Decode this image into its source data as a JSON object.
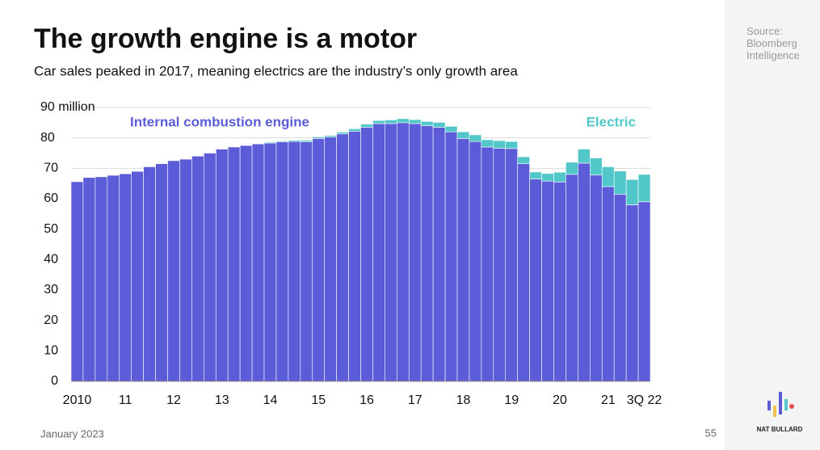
{
  "chart_data": {
    "type": "stacked_bar",
    "title": "The growth engine is a motor",
    "subtitle": "Car sales peaked in 2017, meaning electrics are the industry’s only growth area",
    "categories": [
      "2010",
      null,
      null,
      null,
      "11",
      null,
      null,
      null,
      "12",
      null,
      null,
      null,
      "13",
      null,
      null,
      null,
      "14",
      null,
      null,
      null,
      "15",
      null,
      null,
      null,
      "16",
      null,
      null,
      null,
      "17",
      null,
      null,
      null,
      "18",
      null,
      null,
      null,
      "19",
      null,
      null,
      null,
      "20",
      null,
      null,
      null,
      "21",
      null,
      null,
      "3Q 22"
    ],
    "series": [
      {
        "name": "Internal combustion engine",
        "color": "#5c5cd9",
        "values": [
          65.6,
          67,
          67.2,
          67.7,
          68.2,
          69,
          70.5,
          71.5,
          72.5,
          73,
          74,
          75,
          76.3,
          77,
          77.5,
          78,
          78.3,
          78.7,
          78.8,
          78.7,
          79.8,
          80.3,
          81.3,
          82.2,
          83.5,
          84.7,
          84.7,
          85,
          84.7,
          84,
          83.5,
          82,
          79.8,
          78.8,
          77,
          76.6,
          76.5,
          71.5,
          66.5,
          65.8,
          65.5,
          68,
          71.7,
          67.8,
          64,
          61.5,
          58,
          59
        ]
      },
      {
        "name": "Electric",
        "color": "#52c7c9",
        "values": [
          0,
          0,
          0,
          0,
          0,
          0,
          0,
          0,
          0,
          0,
          0,
          0,
          0,
          0,
          0,
          0,
          0.3,
          0.3,
          0.4,
          0.5,
          0.5,
          0.5,
          0.6,
          0.8,
          1,
          1,
          1.2,
          1.3,
          1.3,
          1.4,
          1.6,
          1.8,
          2.2,
          2.2,
          2.4,
          2.5,
          2.3,
          2.3,
          2.3,
          2.5,
          3.2,
          4,
          4.6,
          5.6,
          6.5,
          7.6,
          8.3,
          9
        ]
      }
    ],
    "ylim": [
      0,
      90
    ],
    "yticks": [
      0,
      10,
      20,
      30,
      40,
      50,
      60,
      70,
      {
        "value": 80,
        "label": "80"
      },
      {
        "value": 90,
        "label": "90 million"
      }
    ],
    "grid": true
  },
  "source": "Source: Bloomberg Intelligence",
  "footer": {
    "date": "January 2023",
    "page": "55",
    "brand": "NAT BULLARD"
  }
}
